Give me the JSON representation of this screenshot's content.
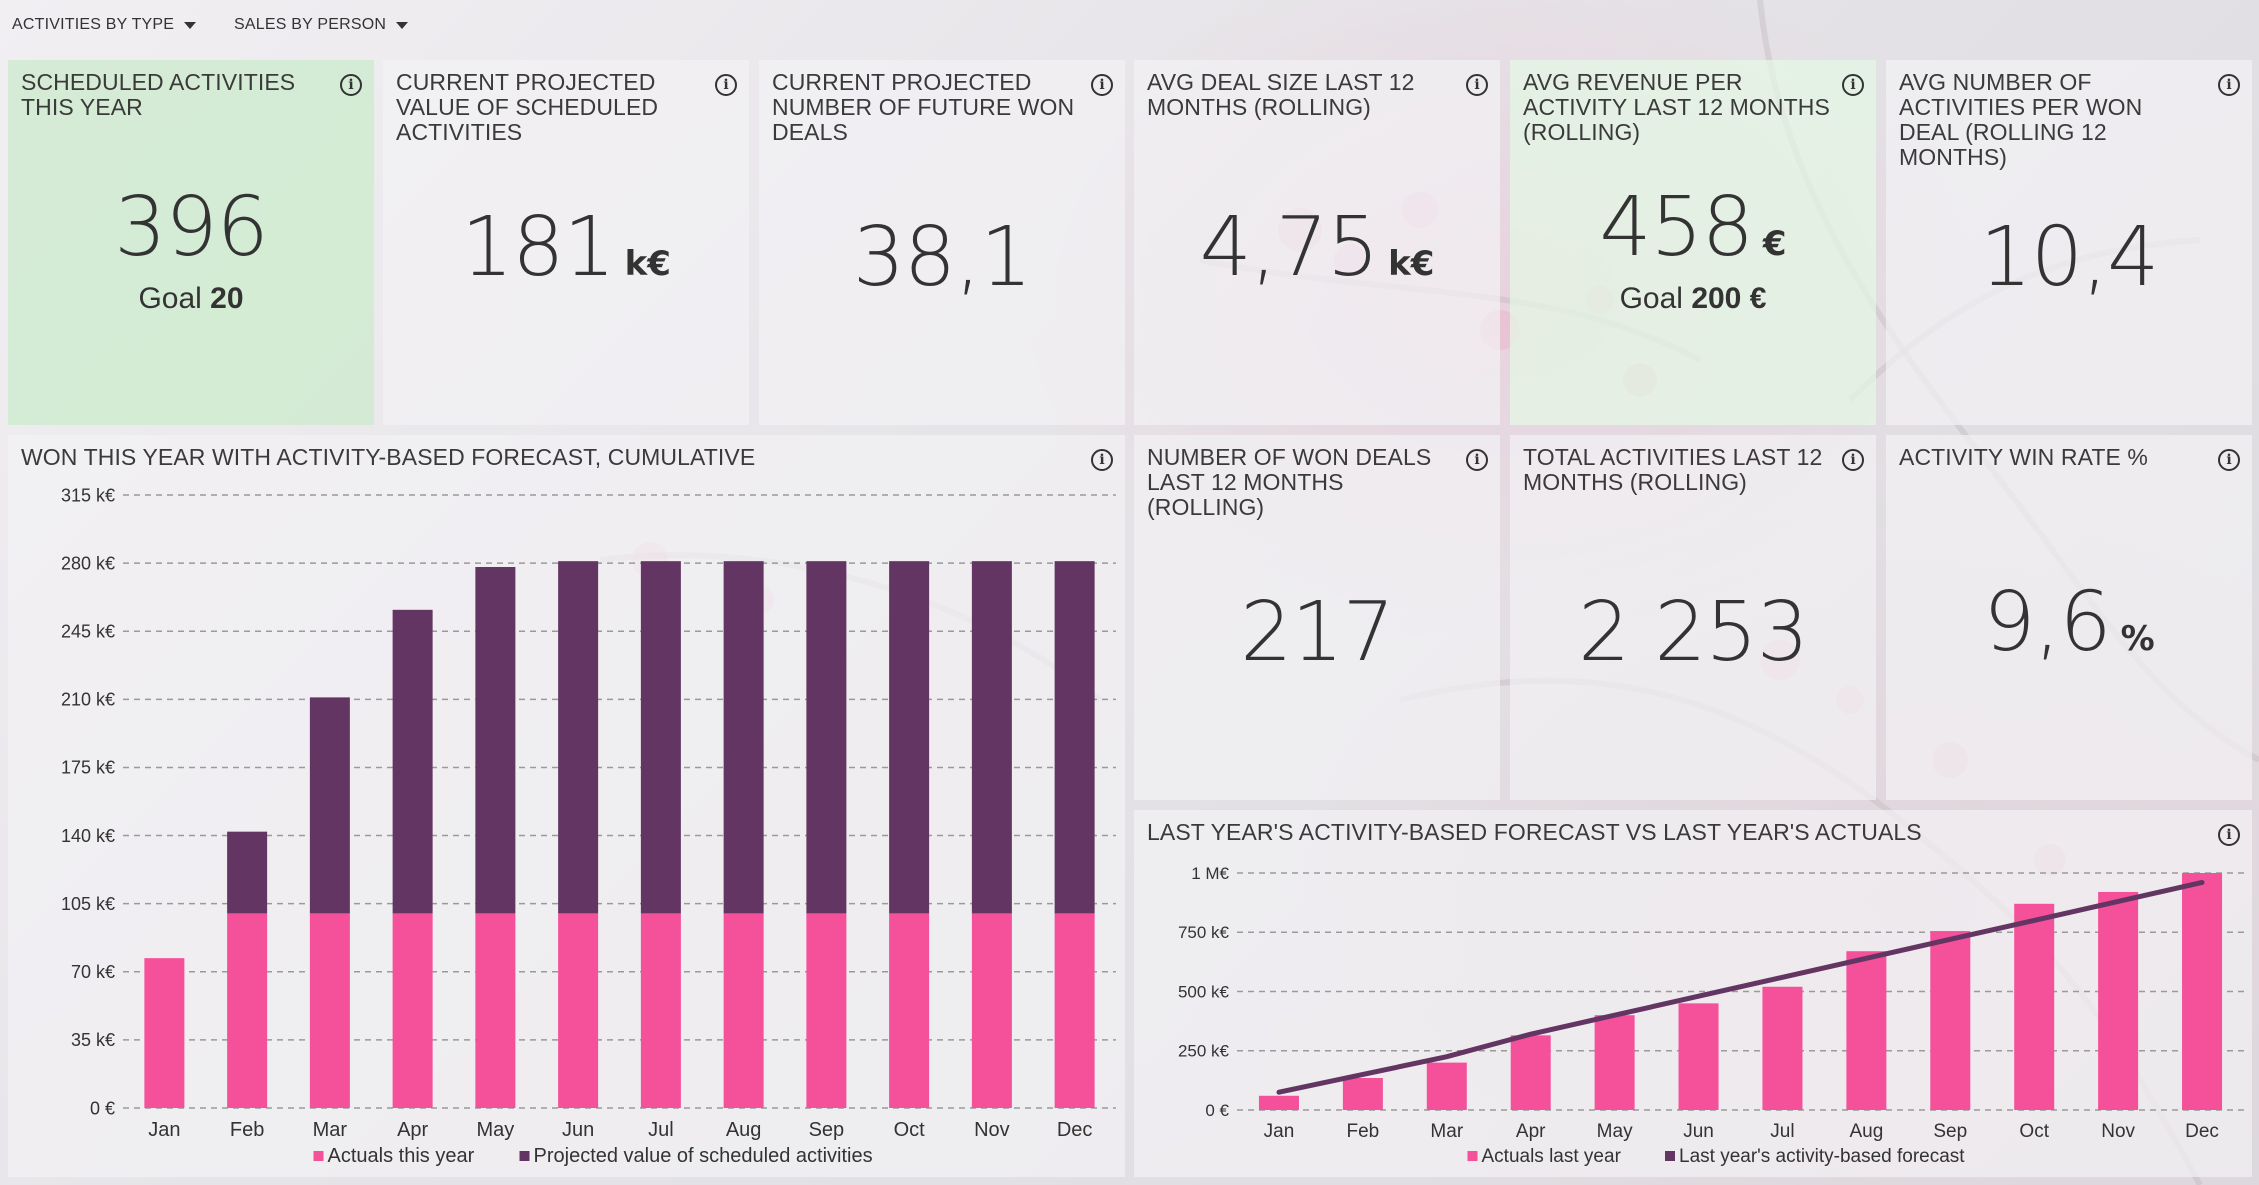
{
  "filters": {
    "activities_by_type": "ACTIVITIES BY TYPE",
    "sales_by_person": "SALES BY PERSON"
  },
  "kpis": {
    "scheduled": {
      "title": "SCHEDULED ACTIVITIES THIS YEAR",
      "value": "396",
      "goal_label": "Goal",
      "goal_value": "20"
    },
    "projected_value": {
      "title": "CURRENT PROJECTED VALUE OF SCHEDULED ACTIVITIES",
      "value": "181",
      "unit": "k€"
    },
    "projected_won": {
      "title": "CURRENT PROJECTED NUMBER OF FUTURE WON DEALS",
      "value": "38,1"
    },
    "avg_deal": {
      "title": "AVG DEAL SIZE LAST 12 MONTHS (ROLLING)",
      "value": "4,75",
      "unit": "k€"
    },
    "avg_revenue": {
      "title": "AVG REVENUE PER ACTIVITY LAST 12 MONTHS (ROLLING)",
      "value": "458",
      "unit": "€",
      "goal_label": "Goal",
      "goal_value": "200 €"
    },
    "avg_activities": {
      "title": "AVG NUMBER OF ACTIVITIES PER WON DEAL (ROLLING 12 MONTHS)",
      "value": "10,4"
    },
    "won_deals": {
      "title": "NUMBER OF WON DEALS LAST 12 MONTHS (ROLLING)",
      "value": "217"
    },
    "total_activities": {
      "title": "TOTAL ACTIVITIES LAST 12 MONTHS (ROLLING)",
      "value": "2 253"
    },
    "win_rate": {
      "title": "ACTIVITY WIN RATE %",
      "value": "9,6",
      "unit": "%"
    }
  },
  "colors": {
    "pink": "#f5509a",
    "purple": "#633563",
    "text": "#333333"
  },
  "icons": {
    "info": "info-icon",
    "dropdown": "caret-down-icon"
  },
  "chart_data": [
    {
      "type": "bar",
      "title": "WON THIS YEAR WITH ACTIVITY-BASED FORECAST, CUMULATIVE",
      "stacked": true,
      "categories": [
        "Jan",
        "Feb",
        "Mar",
        "Apr",
        "May",
        "Jun",
        "Jul",
        "Aug",
        "Sep",
        "Oct",
        "Nov",
        "Dec"
      ],
      "series": [
        {
          "name": "Actuals this year",
          "color": "#f5509a",
          "values": [
            77,
            100,
            100,
            100,
            100,
            100,
            100,
            100,
            100,
            100,
            100,
            100
          ]
        },
        {
          "name": "Projected value of scheduled activities",
          "color": "#633563",
          "values": [
            0,
            42,
            111,
            156,
            178,
            181,
            181,
            181,
            181,
            181,
            181,
            181
          ]
        }
      ],
      "ylim": [
        0,
        315
      ],
      "yticks": [
        "0 €",
        "35 k€",
        "70 k€",
        "105 k€",
        "140 k€",
        "175 k€",
        "210 k€",
        "245 k€",
        "280 k€",
        "315 k€"
      ],
      "ytick_values": [
        0,
        35,
        70,
        105,
        140,
        175,
        210,
        245,
        280,
        315
      ],
      "grid": true,
      "legend": "bottom"
    },
    {
      "type": "bar",
      "title": "LAST YEAR'S ACTIVITY-BASED FORECAST VS LAST YEAR'S ACTUALS",
      "categories": [
        "Jan",
        "Feb",
        "Mar",
        "Apr",
        "May",
        "Jun",
        "Jul",
        "Aug",
        "Sep",
        "Oct",
        "Nov",
        "Dec"
      ],
      "series": [
        {
          "name": "Actuals last year",
          "type": "bar",
          "color": "#f5509a",
          "values": [
            60,
            135,
            200,
            315,
            400,
            450,
            520,
            670,
            755,
            870,
            920,
            1000
          ]
        },
        {
          "name": "Last year's activity-based forecast",
          "type": "line",
          "color": "#633563",
          "values": [
            75,
            150,
            225,
            320,
            400,
            480,
            560,
            640,
            720,
            800,
            880,
            960
          ]
        }
      ],
      "ylim": [
        0,
        1000
      ],
      "yticks": [
        "0 €",
        "250 k€",
        "500 k€",
        "750 k€",
        "1 M€"
      ],
      "ytick_values": [
        0,
        250,
        500,
        750,
        1000
      ],
      "grid": true,
      "legend": "bottom"
    }
  ]
}
